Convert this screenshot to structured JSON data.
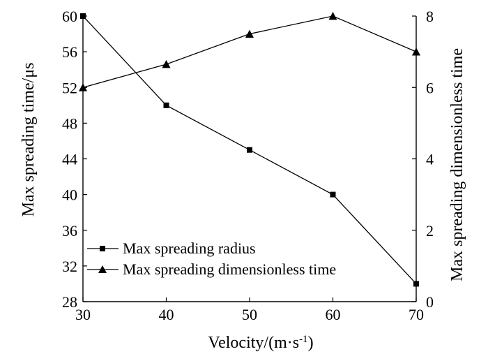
{
  "chart_data": {
    "type": "line",
    "x": [
      30,
      40,
      50,
      60,
      70
    ],
    "xlabel": "Velocity/(m·s",
    "xlabel_sup": "-1",
    "xlabel_end": ")",
    "xlim": [
      30,
      70
    ],
    "xticks": [
      "30",
      "40",
      "50",
      "60",
      "70"
    ],
    "ylabel_left": "Max spreading time/μs",
    "ylim_left": [
      28,
      60
    ],
    "yticks_left": [
      "28",
      "32",
      "36",
      "40",
      "44",
      "48",
      "52",
      "56",
      "60"
    ],
    "ylabel_right": "Max spreading dimensionless time",
    "ylim_right": [
      0,
      8
    ],
    "yticks_right": [
      "0",
      "2",
      "4",
      "6",
      "8"
    ],
    "series": [
      {
        "name": "Max spreading radius",
        "axis": "left",
        "marker": "square",
        "values": [
          60,
          50,
          45,
          40,
          30
        ]
      },
      {
        "name": "Max spreading dimensionless time",
        "axis": "right",
        "marker": "triangle",
        "values": [
          6.0,
          6.65,
          7.5,
          8.0,
          7.0
        ]
      }
    ],
    "legend_position": "bottom-left"
  }
}
